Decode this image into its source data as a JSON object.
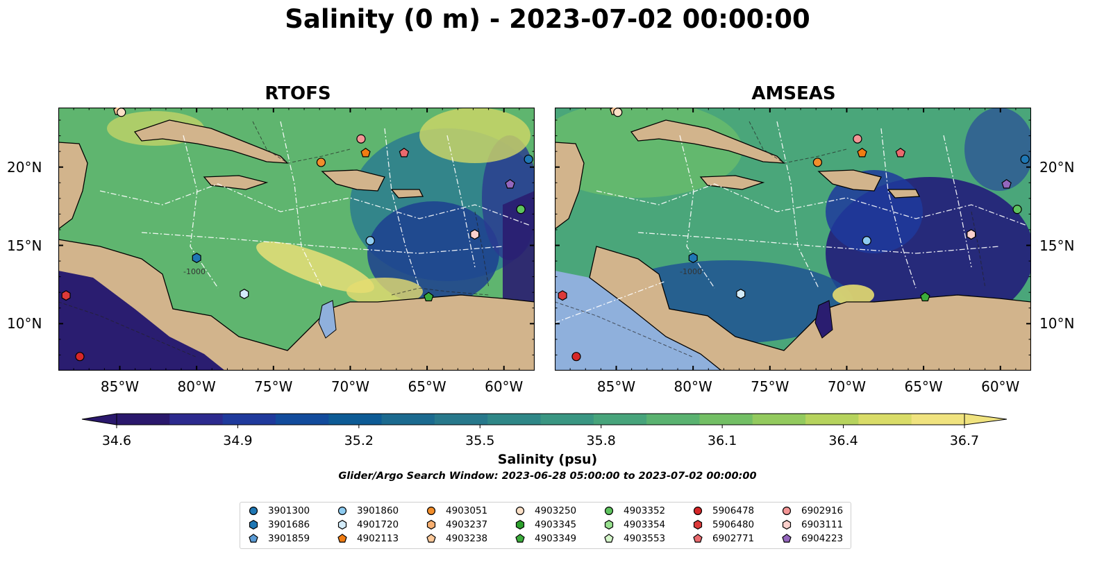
{
  "title": "Salinity (0 m) - 2023-07-02 00:00:00",
  "panels": [
    {
      "title": "RTOFS"
    },
    {
      "title": "AMSEAS"
    }
  ],
  "map": {
    "lon_range": [
      -89,
      -58
    ],
    "lat_range": [
      7,
      23.8
    ],
    "lon_ticks": [
      "85°W",
      "80°W",
      "75°W",
      "70°W",
      "65°W",
      "60°W"
    ],
    "lat_ticks": [
      "20°N",
      "15°N",
      "10°N"
    ],
    "land_color": "#d2b48c",
    "lake_color": "#8fb0dc",
    "contour_label": "-1000"
  },
  "colorbar": {
    "label": "Salinity (psu)",
    "ticks": [
      "34.6",
      "34.9",
      "35.2",
      "35.5",
      "35.8",
      "36.1",
      "36.4",
      "36.7"
    ],
    "min": 34.6,
    "max": 36.7,
    "extend": "both",
    "colors": [
      "#2a186c",
      "#2c2a8e",
      "#1f3a9c",
      "#124b9c",
      "#0d5b95",
      "#1b6a8f",
      "#27788b",
      "#2f8787",
      "#3a9682",
      "#47a47b",
      "#5ab270",
      "#73bf65",
      "#93ca5e",
      "#b6d35d",
      "#d9dc68",
      "#f0e37f"
    ]
  },
  "search_window": "Glider/Argo Search Window: 2023-06-28 05:00:00 to 2023-07-02 00:00:00",
  "legend": [
    {
      "id": "3901300",
      "marker": "circle",
      "color": "#1f77b4"
    },
    {
      "id": "3901686",
      "marker": "hexagon",
      "color": "#1f77b4"
    },
    {
      "id": "3901859",
      "marker": "pentagon",
      "color": "#5b9bd5"
    },
    {
      "id": "3901860",
      "marker": "circle",
      "color": "#8ecbf0"
    },
    {
      "id": "4901720",
      "marker": "hexagon",
      "color": "#d3ecfa"
    },
    {
      "id": "4902113",
      "marker": "pentagon",
      "color": "#f07c12"
    },
    {
      "id": "4903051",
      "marker": "circle",
      "color": "#f28e2b"
    },
    {
      "id": "4903237",
      "marker": "hexagon",
      "color": "#f8b071"
    },
    {
      "id": "4903238",
      "marker": "pentagon",
      "color": "#fdc99a"
    },
    {
      "id": "4903250",
      "marker": "circle",
      "color": "#fbe0c7"
    },
    {
      "id": "4903345",
      "marker": "hexagon",
      "color": "#2ca02c"
    },
    {
      "id": "4903349",
      "marker": "pentagon",
      "color": "#3cad3c"
    },
    {
      "id": "4903352",
      "marker": "circle",
      "color": "#5ec35e"
    },
    {
      "id": "4903354",
      "marker": "hexagon",
      "color": "#98e08f"
    },
    {
      "id": "4903553",
      "marker": "pentagon",
      "color": "#d4f5c9"
    },
    {
      "id": "5906478",
      "marker": "circle",
      "color": "#d62728"
    },
    {
      "id": "5906480",
      "marker": "hexagon",
      "color": "#dc3a3a"
    },
    {
      "id": "6902771",
      "marker": "pentagon",
      "color": "#ea6a6e"
    },
    {
      "id": "6902916",
      "marker": "circle",
      "color": "#f39595"
    },
    {
      "id": "6903111",
      "marker": "hexagon",
      "color": "#fbd0cc"
    },
    {
      "id": "6904223",
      "marker": "pentagon",
      "color": "#9467bd"
    }
  ],
  "stations": [
    {
      "id": "3901300",
      "lon": -58.4,
      "lat": 20.5
    },
    {
      "id": "3901686",
      "lon": -80.0,
      "lat": 14.2
    },
    {
      "id": "3901860",
      "lon": -68.7,
      "lat": 15.3
    },
    {
      "id": "4901720",
      "lon": -76.9,
      "lat": 11.9
    },
    {
      "id": "4902113",
      "lon": -69.0,
      "lat": 20.9
    },
    {
      "id": "4903051",
      "lon": -71.9,
      "lat": 20.3
    },
    {
      "id": "4903238",
      "lon": -85.1,
      "lat": 23.6
    },
    {
      "id": "4903250",
      "lon": -84.9,
      "lat": 23.5
    },
    {
      "id": "4903349",
      "lon": -64.9,
      "lat": 11.7
    },
    {
      "id": "4903352",
      "lon": -58.9,
      "lat": 17.3
    },
    {
      "id": "5906478",
      "lon": -87.6,
      "lat": 7.9
    },
    {
      "id": "5906480",
      "lon": -88.5,
      "lat": 11.8
    },
    {
      "id": "6902771",
      "lon": -66.5,
      "lat": 20.9
    },
    {
      "id": "6902916",
      "lon": -69.3,
      "lat": 21.8
    },
    {
      "id": "6903111",
      "lon": -61.9,
      "lat": 15.7
    },
    {
      "id": "6904223",
      "lon": -59.6,
      "lat": 18.9
    }
  ]
}
